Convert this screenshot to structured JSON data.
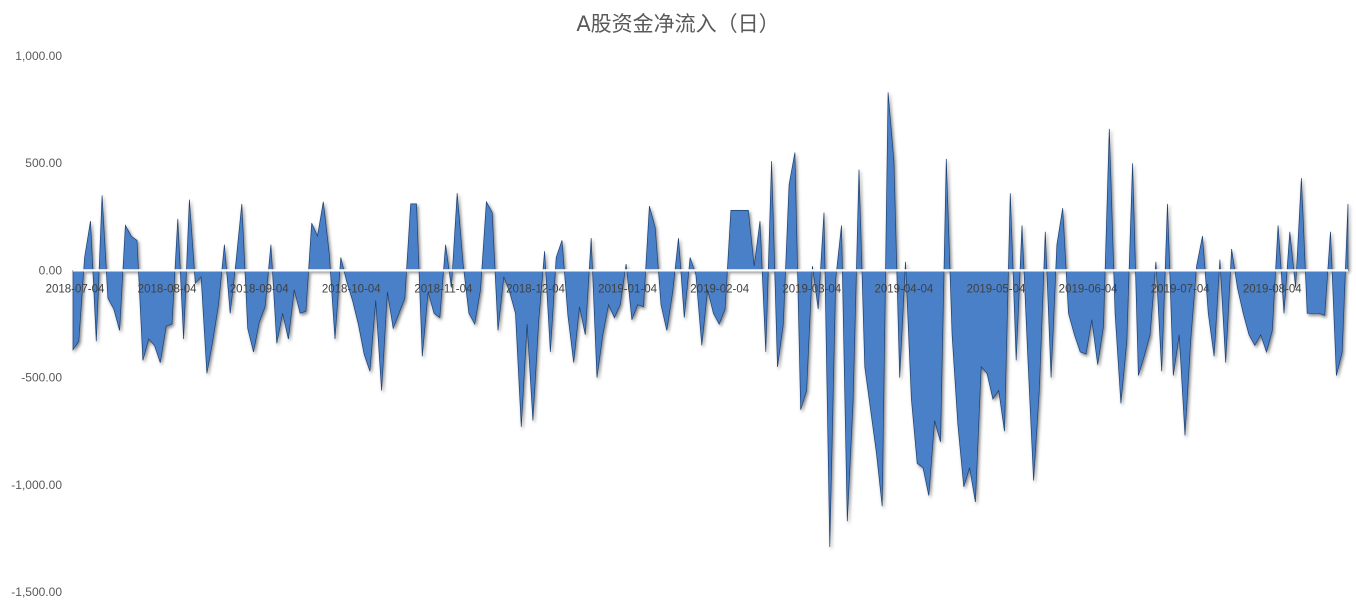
{
  "chart_data": {
    "type": "area",
    "title": "A股资金净流入（日）",
    "xlabel": "",
    "ylabel": "",
    "ylim": [
      -1500,
      1000
    ],
    "yticks": [
      1000,
      500,
      0,
      -500,
      -1000,
      -1500
    ],
    "ytick_labels": [
      "1,000.00",
      "500.00",
      "0.00",
      "-500.00",
      "-1,000.00",
      "-1,500.00"
    ],
    "xtick_labels": [
      "2018-07-04",
      "2018-08-04",
      "2018-09-04",
      "2018-10-04",
      "2018-11-04",
      "2018-12-04",
      "2019-01-04",
      "2019-02-04",
      "2019-03-04",
      "2019-04-04",
      "2019-05-04",
      "2019-06-04",
      "2019-07-04",
      "2019-08-04"
    ],
    "series_color": "#4a80c8",
    "grid": false,
    "legend": "none",
    "series": [
      {
        "values": [
          -370,
          -330,
          60,
          230,
          -330,
          350,
          -130,
          -180,
          -280,
          210,
          160,
          140,
          -420,
          -320,
          -350,
          -430,
          -260,
          -250,
          240,
          -320,
          330,
          -60,
          -30,
          -480,
          -330,
          -160,
          120,
          -200,
          40,
          310,
          -270,
          -380,
          -240,
          -170,
          120,
          -340,
          -200,
          -320,
          -90,
          -200,
          -190,
          220,
          160,
          320,
          80,
          -320,
          60,
          -50,
          -140,
          -250,
          -390,
          -470,
          -140,
          -560,
          -100,
          -270,
          -200,
          -130,
          310,
          310,
          -400,
          -100,
          -200,
          -220,
          120,
          -80,
          360,
          30,
          -200,
          -250,
          -90,
          320,
          270,
          -280,
          -30,
          -100,
          -200,
          -730,
          -250,
          -700,
          -230,
          90,
          -380,
          60,
          140,
          -210,
          -430,
          -170,
          -300,
          150,
          -500,
          -300,
          -160,
          -220,
          -160,
          30,
          -230,
          -160,
          -170,
          300,
          200,
          -160,
          -280,
          -100,
          150,
          -220,
          60,
          -20,
          -350,
          -90,
          -200,
          -250,
          -180,
          280,
          280,
          280,
          280,
          20,
          230,
          -380,
          510,
          -450,
          -250,
          400,
          550,
          -650,
          -560,
          20,
          -180,
          270,
          -1290,
          -40,
          210,
          -1170,
          -610,
          470,
          -450,
          -650,
          -850,
          -1100,
          830,
          510,
          -500,
          40,
          -600,
          -900,
          -920,
          -1050,
          -700,
          -800,
          520,
          -300,
          -720,
          -1010,
          -920,
          -1080,
          -450,
          -480,
          -600,
          -560,
          -750,
          360,
          -420,
          210,
          -400,
          -980,
          -550,
          180,
          -500,
          120,
          290,
          -200,
          -300,
          -380,
          -390,
          -230,
          -440,
          -260,
          660,
          -200,
          -620,
          -330,
          500,
          -490,
          -400,
          -300,
          40,
          -470,
          310,
          -490,
          -300,
          -770,
          -320,
          20,
          160,
          -200,
          -400,
          50,
          -430,
          100,
          -80,
          -200,
          -300,
          -350,
          -300,
          -380,
          -280,
          210,
          -200,
          180,
          -80,
          430,
          -200,
          -200,
          -200,
          -210,
          180,
          -490,
          -380,
          310
        ]
      }
    ]
  }
}
